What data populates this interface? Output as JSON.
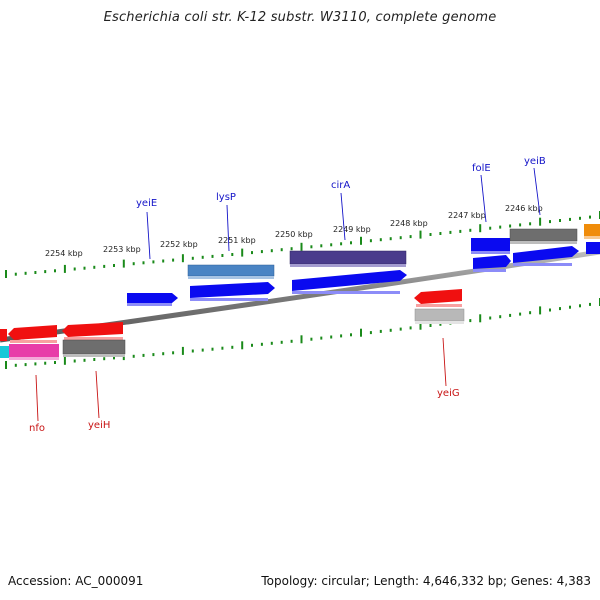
{
  "title": "Escherichia coli str. K-12 substr. W3110, complete genome",
  "accession": "Accession: AC_000091",
  "summary": "Topology: circular; Length: 4,646,332 bp; Genes: 4,383",
  "colors": {
    "forward_gene": "#0a0af0",
    "reverse_gene": "#f01010",
    "backbone": "#8a8a8a",
    "tick": "#1a8a1a",
    "label_forward": "#1414c8",
    "label_reverse": "#c81414",
    "scale_label": "#222222",
    "cds_blue": "#4a84c4",
    "cds_purple": "#4a3c8c",
    "cds_gray": "#6e6e6e",
    "cds_light_gray": "#b8b8b8",
    "cds_magenta": "#e83ca8",
    "cds_cyan": "#18c8d8",
    "cds_orange": "#f08c0a"
  },
  "scale_labels": [
    "2254 kbp",
    "2253 kbp",
    "2252 kbp",
    "2251 kbp",
    "2250 kbp",
    "2249 kbp",
    "2248 kbp",
    "2247 kbp",
    "2246 kbp"
  ],
  "gene_labels": [
    {
      "name": "yeiE",
      "strand": "forward"
    },
    {
      "name": "lysP",
      "strand": "forward"
    },
    {
      "name": "cirA",
      "strand": "forward"
    },
    {
      "name": "folE",
      "strand": "forward"
    },
    {
      "name": "yeiB",
      "strand": "forward"
    },
    {
      "name": "nfo",
      "strand": "reverse"
    },
    {
      "name": "yeiH",
      "strand": "reverse"
    },
    {
      "name": "yeiG",
      "strand": "reverse"
    }
  ]
}
